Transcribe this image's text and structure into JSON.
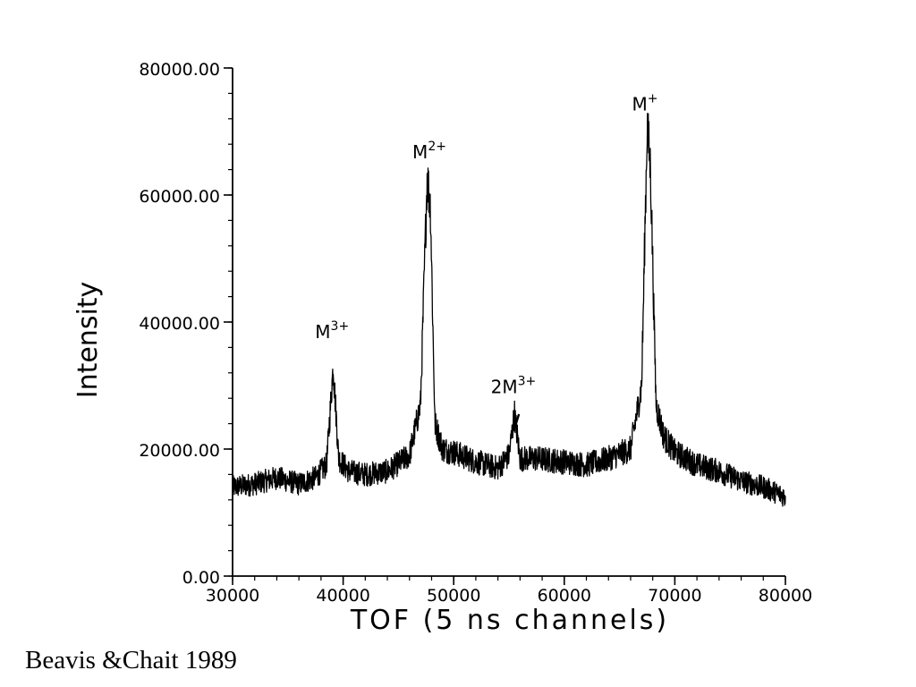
{
  "chart_data": {
    "type": "line",
    "xlabel": "TOF (5 ns channels)",
    "ylabel": "Intensity",
    "xlim": [
      30000,
      80000
    ],
    "ylim": [
      0,
      80000
    ],
    "xticks": [
      "30000",
      "40000",
      "50000",
      "60000",
      "70000",
      "80000"
    ],
    "yticks": [
      "0.00",
      "20000.00",
      "40000.00",
      "60000.00",
      "80000.00"
    ],
    "grid": false,
    "color": "#000000",
    "x": [
      30000,
      32000,
      34000,
      36000,
      37500,
      38500,
      39100,
      39600,
      40500,
      42000,
      44000,
      46000,
      47000,
      47600,
      47900,
      48300,
      49000,
      50000,
      52000,
      54000,
      55000,
      55500,
      56000,
      57500,
      60000,
      62000,
      64000,
      66000,
      67000,
      67500,
      67800,
      68300,
      69000,
      70000,
      72000,
      74000,
      76000,
      78000,
      80000
    ],
    "y": [
      14000,
      14500,
      15500,
      14500,
      15500,
      17500,
      33000,
      18500,
      16500,
      16000,
      16500,
      19000,
      27000,
      63000,
      58000,
      24000,
      20000,
      19500,
      18000,
      17000,
      19000,
      25500,
      18500,
      18500,
      18000,
      17500,
      18500,
      20000,
      30000,
      71000,
      64000,
      27000,
      22000,
      19500,
      17500,
      16500,
      15000,
      14000,
      12500
    ],
    "annotations": [
      {
        "base": "M",
        "sup": "3+",
        "x": 39000,
        "y": 37500
      },
      {
        "base": "M",
        "sup": "2+",
        "x": 47800,
        "y": 65800
      },
      {
        "base": "2M",
        "sup": "3+",
        "x": 55400,
        "y": 28800
      },
      {
        "base": "M",
        "sup": "+",
        "x": 67300,
        "y": 73300
      }
    ]
  },
  "caption": "Beavis &Chait 1989"
}
